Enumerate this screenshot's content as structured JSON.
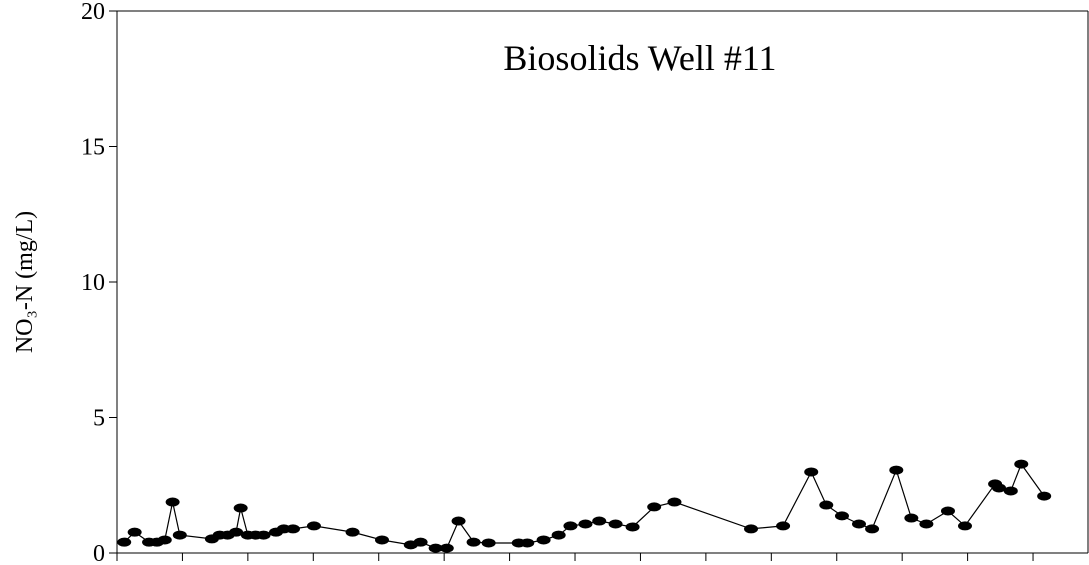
{
  "chart_data": {
    "type": "line",
    "title": "Biosolids Well #11",
    "y_label": "NO₃-N (mg/L)",
    "x": [
      0.11,
      0.27,
      0.49,
      0.61,
      0.73,
      0.85,
      0.96,
      1.45,
      1.57,
      1.69,
      1.82,
      1.89,
      2.0,
      2.12,
      2.24,
      2.43,
      2.55,
      2.69,
      3.01,
      3.6,
      4.05,
      4.49,
      4.64,
      4.87,
      5.04,
      5.22,
      5.45,
      5.68,
      6.14,
      6.27,
      6.52,
      6.75,
      6.93,
      7.16,
      7.37,
      7.62,
      7.88,
      8.21,
      8.52,
      9.69,
      10.18,
      10.61,
      10.84,
      11.08,
      11.34,
      11.54,
      11.91,
      12.14,
      12.37,
      12.7,
      12.96,
      13.42,
      13.48,
      13.66,
      13.82,
      14.17
    ],
    "values": [
      0.4,
      0.77,
      0.4,
      0.4,
      0.48,
      1.88,
      0.66,
      0.52,
      0.66,
      0.66,
      0.77,
      1.66,
      0.66,
      0.66,
      0.66,
      0.77,
      0.89,
      0.89,
      1.0,
      0.77,
      0.48,
      0.3,
      0.4,
      0.18,
      0.18,
      1.18,
      0.4,
      0.37,
      0.37,
      0.37,
      0.48,
      0.66,
      1.0,
      1.07,
      1.18,
      1.07,
      0.96,
      1.7,
      1.88,
      0.89,
      1.0,
      2.99,
      1.77,
      1.37,
      1.07,
      0.89,
      3.06,
      1.29,
      1.07,
      1.55,
      1.0,
      2.55,
      2.4,
      2.29,
      3.28,
      2.1
    ],
    "color": "#000000",
    "xlim": [
      0,
      14.84
    ],
    "xticks": [
      0,
      1,
      2,
      3,
      4,
      5,
      6,
      7,
      8,
      9,
      10,
      11,
      12,
      13,
      14
    ],
    "ylim": [
      0,
      20
    ],
    "yticks": [
      0,
      5,
      10,
      15,
      20
    ]
  }
}
